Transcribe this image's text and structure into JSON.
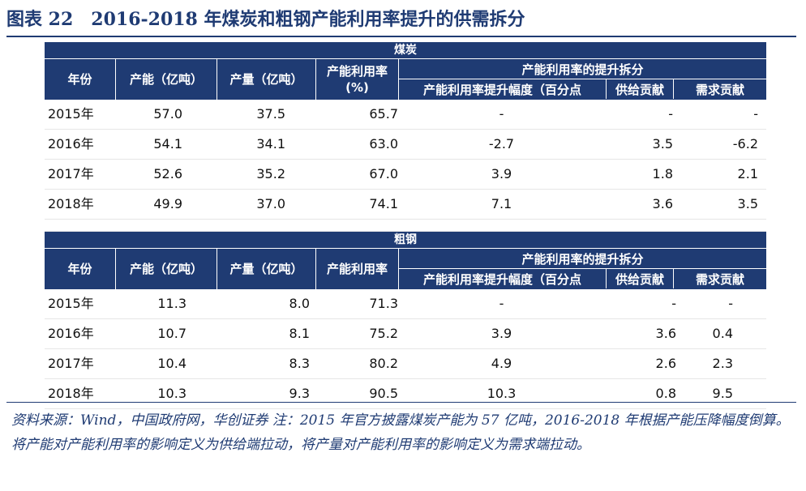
{
  "figure": {
    "title": "图表 22　2016-2018 年煤炭和粗钢产能利用率提升的供需拆分"
  },
  "headers": {
    "year": "年份",
    "capacity": "产能（亿吨）",
    "output": "产量（亿吨）",
    "util_line1": "产能利用率",
    "util_line2": "(%)",
    "decomp": "产能利用率的提升拆分",
    "sub_increase": "产能利用率提升幅度（百分点",
    "sub_supply": "供给贡献",
    "sub_demand": "需求贡献"
  },
  "coal": {
    "label": "煤炭",
    "rows": [
      {
        "year": "2015年",
        "capacity": "57.0",
        "output": "37.5",
        "util": "65.7",
        "increase": "-",
        "supply": "-",
        "demand": "-"
      },
      {
        "year": "2016年",
        "capacity": "54.1",
        "output": "34.1",
        "util": "63.0",
        "increase": "-2.7",
        "supply": "3.5",
        "demand": "-6.2"
      },
      {
        "year": "2017年",
        "capacity": "52.6",
        "output": "35.2",
        "util": "67.0",
        "increase": "3.9",
        "supply": "1.8",
        "demand": "2.1"
      },
      {
        "year": "2018年",
        "capacity": "49.9",
        "output": "37.0",
        "util": "74.1",
        "increase": "7.1",
        "supply": "3.6",
        "demand": "3.5"
      }
    ]
  },
  "steel": {
    "label": "粗钢",
    "rows": [
      {
        "year": "2015年",
        "capacity": "11.3",
        "output": "8.0",
        "util": "71.3",
        "increase": "-",
        "supply": "-",
        "demand": "-"
      },
      {
        "year": "2016年",
        "capacity": "10.7",
        "output": "8.1",
        "util": "75.2",
        "increase": "3.9",
        "supply": "3.6",
        "demand": "0.4"
      },
      {
        "year": "2017年",
        "capacity": "10.4",
        "output": "8.3",
        "util": "80.2",
        "increase": "4.9",
        "supply": "2.6",
        "demand": "2.3"
      },
      {
        "year": "2018年",
        "capacity": "10.3",
        "output": "9.3",
        "util": "90.5",
        "increase": "10.3",
        "supply": "0.8",
        "demand": "9.5"
      }
    ]
  },
  "note": "资料来源：Wind，中国政府网，华创证券 注：2015 年官方披露煤炭产能为 57 亿吨，2016-2018 年根据产能压降幅度倒算。将产能对产能利用率的影响定义为供给端拉动，将产量对产能利用率的影响定义为需求端拉动。",
  "colors": {
    "header_bg": "#1f3b73",
    "title": "#1f3b73"
  }
}
